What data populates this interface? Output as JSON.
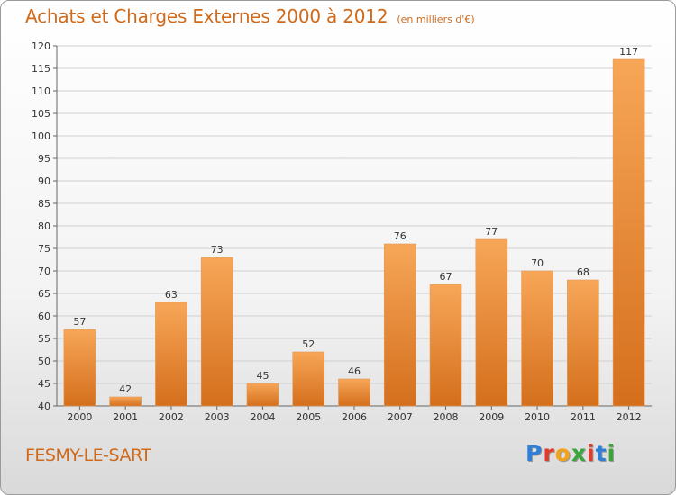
{
  "header": {
    "title": "Achats et Charges Externes 2000 à 2012",
    "subtitle": "(en milliers d'€)"
  },
  "footer": {
    "town": "FESMY-LE-SART",
    "logo_text": "Proxiti",
    "logo_colors": [
      "#2f7fd8",
      "#e23b2e",
      "#f2a21c",
      "#3aa53a",
      "#e23b2e",
      "#2f7fd8",
      "#3aa53a"
    ]
  },
  "colors": {
    "bar_light": "#f7a658",
    "bar_dark": "#d46f1c",
    "grid": "#cfcfcf",
    "axis_text": "#333333"
  },
  "chart_data": {
    "type": "bar",
    "title": "Achats et Charges Externes 2000 à 2012",
    "subtitle": "(en milliers d'€)",
    "xlabel": "",
    "ylabel": "",
    "categories": [
      "2000",
      "2001",
      "2002",
      "2003",
      "2004",
      "2005",
      "2006",
      "2007",
      "2008",
      "2009",
      "2010",
      "2011",
      "2012"
    ],
    "values": [
      57,
      42,
      63,
      73,
      45,
      52,
      46,
      76,
      67,
      77,
      70,
      68,
      117
    ],
    "ylim": [
      40,
      120
    ],
    "yticks": [
      40,
      45,
      50,
      55,
      60,
      65,
      70,
      75,
      80,
      85,
      90,
      95,
      100,
      105,
      110,
      115,
      120
    ],
    "grid": true,
    "data_labels": true,
    "legend": "none"
  }
}
